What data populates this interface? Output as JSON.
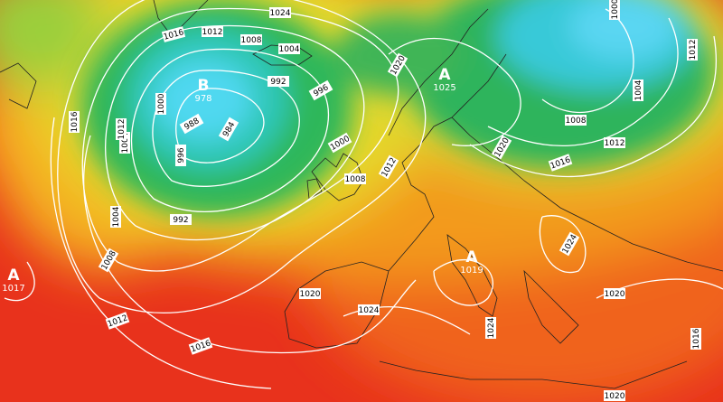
{
  "pressure_centers": [
    {
      "symbol": "A",
      "value": 1017
    },
    {
      "symbol": "B",
      "value": 978
    },
    {
      "symbol": "A",
      "value": 1025
    },
    {
      "symbol": "A",
      "value": 1019
    }
  ],
  "isobar_labels": [
    1024,
    1016,
    1012,
    1008,
    1004,
    992,
    996,
    1000,
    988,
    984,
    1004,
    996,
    992,
    1012,
    1016,
    1020,
    1000,
    1008,
    1012,
    1004,
    1008,
    1012,
    1016,
    1020,
    1024,
    1024,
    1024,
    1020,
    1016,
    1020,
    1016,
    1012,
    1008,
    1004,
    1012,
    1000,
    1020
  ]
}
